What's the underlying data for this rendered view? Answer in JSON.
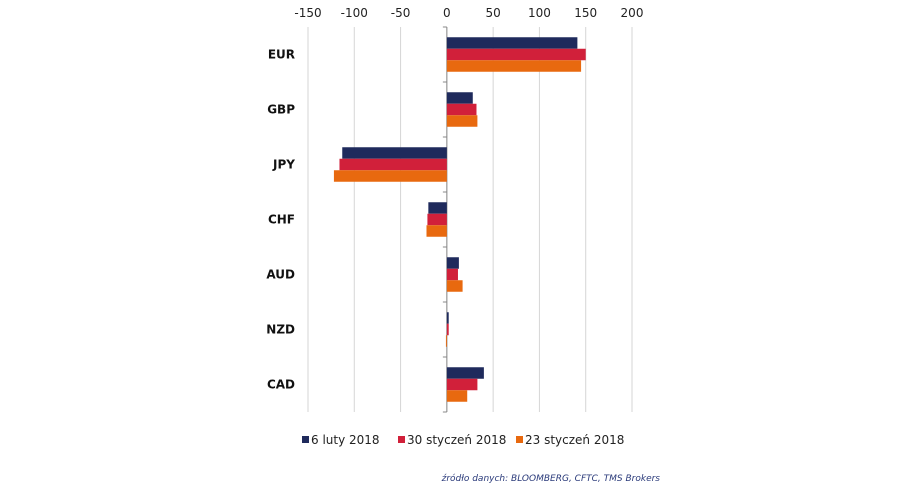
{
  "chart_data": {
    "type": "bar",
    "orientation": "horizontal",
    "categories": [
      "EUR",
      "GBP",
      "JPY",
      "CHF",
      "AUD",
      "NZD",
      "CAD"
    ],
    "series": [
      {
        "name": "6 luty 2018",
        "color": "#1f2a5c",
        "values": [
          141,
          28,
          -113,
          -20,
          13,
          2,
          40
        ]
      },
      {
        "name": "30 styczeń 2018",
        "color": "#d1203a",
        "values": [
          150,
          32,
          -116,
          -21,
          12,
          2,
          33
        ]
      },
      {
        "name": "23 styczeń 2018",
        "color": "#e8690f",
        "values": [
          145,
          33,
          -122,
          -22,
          17,
          -1,
          22
        ]
      }
    ],
    "xlim": [
      -150,
      200
    ],
    "xticks": [
      -150,
      -100,
      -50,
      0,
      50,
      100,
      150,
      200
    ],
    "xtick_labels": [
      "-150",
      "-100",
      "-50",
      "0",
      "50",
      "100",
      "150",
      "200"
    ],
    "axis_position": "top",
    "grid": true,
    "legend_position": "bottom",
    "source": "źródło danych: BLOOMBERG, CFTC, TMS Brokers"
  }
}
